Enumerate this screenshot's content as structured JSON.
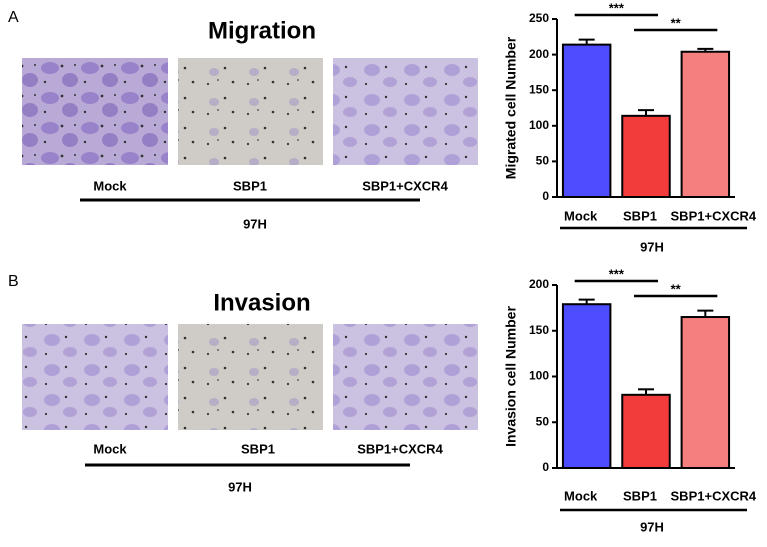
{
  "panels": [
    {
      "label": "A",
      "title": "Migration",
      "image_labels": [
        "Mock",
        "SBP1",
        "SBP1+CXCR4"
      ],
      "group_label": "97H"
    },
    {
      "label": "B",
      "title": "Invasion",
      "image_labels": [
        "Mock",
        "SBP1",
        "SBP1+CXCR4"
      ],
      "group_label": "97H"
    }
  ],
  "chart_data": [
    {
      "type": "bar",
      "ylabel": "Migrated cell Number",
      "categories": [
        "Mock",
        "SBP1",
        "SBP1+CXCR4"
      ],
      "values": [
        214,
        114,
        204
      ],
      "errors": [
        7,
        8,
        4
      ],
      "colors": [
        "#4d4dff",
        "#f23c3c",
        "#f57f7f"
      ],
      "ylim": [
        0,
        250
      ],
      "yticks": [
        0,
        50,
        100,
        150,
        200,
        250
      ],
      "annotations": [
        "***",
        "**"
      ],
      "group_label": "97H"
    },
    {
      "type": "bar",
      "ylabel": "Invasion cell Number",
      "categories": [
        "Mock",
        "SBP1",
        "SBP1+CXCR4"
      ],
      "values": [
        179,
        80,
        165
      ],
      "errors": [
        5,
        6,
        7
      ],
      "colors": [
        "#4d4dff",
        "#f23c3c",
        "#f57f7f"
      ],
      "ylim": [
        0,
        200
      ],
      "yticks": [
        0,
        50,
        100,
        150,
        200
      ],
      "annotations": [
        "***",
        "**"
      ],
      "group_label": "97H"
    }
  ]
}
